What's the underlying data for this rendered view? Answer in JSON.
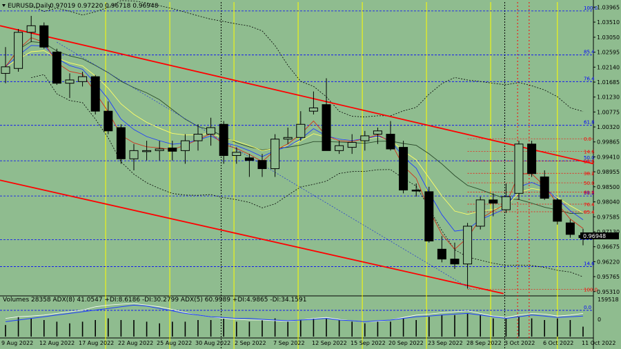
{
  "header": {
    "symbol": "EURUSD,Daily",
    "ohlc": "0.97019 0.97220 0.96718 0.96948"
  },
  "price_badge": "0.96948",
  "volume_header": "Volumes 28358  ADX(8) 41.0547 +DI:8.6186 -DI:30.2799  ADX(5) 60.9989 +DI:4.9865 -DI:34.1591",
  "volume_scale": {
    "top": "159518",
    "bottom": "0"
  },
  "colors": {
    "background": "#8fbc8f",
    "red_channel": "#ff0000",
    "blue_fib": "#0000ff",
    "red_fib": "#ff0000",
    "yellow_vline": "#ffff00"
  },
  "chart_data": {
    "type": "candlestick",
    "symbol": "EURUSD",
    "timeframe": "Daily",
    "x_tick_labels": [
      "9 Aug 2022",
      "12 Aug 2022",
      "17 Aug 2022",
      "22 Aug 2022",
      "25 Aug 2022",
      "30 Aug 2022",
      "2 Sep 2022",
      "7 Sep 2022",
      "12 Sep 2022",
      "15 Sep 2022",
      "20 Sep 2022",
      "23 Sep 2022",
      "28 Sep 2022",
      "3 Oct 2022",
      "6 Oct 2022",
      "11 Oct 2022"
    ],
    "y_tick_labels": [
      "1.03965",
      "1.03510",
      "1.03050",
      "1.02595",
      "1.02140",
      "1.01685",
      "1.01230",
      "1.00775",
      "1.00320",
      "0.99865",
      "0.99410",
      "0.98955",
      "0.98500",
      "0.98040",
      "0.97585",
      "0.97130",
      "0.96675",
      "0.96220",
      "0.95765",
      "0.95310"
    ],
    "y_range": [
      0.952,
      1.0412
    ],
    "blue_fib_levels": [
      {
        "label": "100.0",
        "price": 1.0385
      },
      {
        "label": "85.4",
        "price": 1.0251
      },
      {
        "label": "76.4",
        "price": 1.017
      },
      {
        "label": "61.8",
        "price": 1.0037
      },
      {
        "label": "50.0",
        "price": 0.9929
      },
      {
        "label": "38.2",
        "price": 0.9822
      },
      {
        "label": "23.6",
        "price": 0.9689
      },
      {
        "label": "14.6",
        "price": 0.9607
      },
      {
        "label": "0.0",
        "price": 0.9474
      }
    ],
    "red_fib_levels": [
      {
        "label": "0.0",
        "price": 0.9996
      },
      {
        "label": "14.6",
        "price": 0.9958
      },
      {
        "label": "23.6",
        "price": 0.9928
      },
      {
        "label": "38.2",
        "price": 0.9891
      },
      {
        "label": "50.0",
        "price": 0.9862
      },
      {
        "label": "61.8",
        "price": 0.9834
      },
      {
        "label": "76.4",
        "price": 0.9797
      },
      {
        "label": "85.4",
        "price": 0.9774
      },
      {
        "label": "100.0",
        "price": 0.9538
      }
    ],
    "candles": [
      {
        "o": 1.0195,
        "h": 1.0275,
        "l": 1.0165,
        "c": 1.0215
      },
      {
        "o": 1.021,
        "h": 1.033,
        "l": 1.02,
        "c": 1.032
      },
      {
        "o": 1.032,
        "h": 1.037,
        "l": 1.029,
        "c": 1.034
      },
      {
        "o": 1.034,
        "h": 1.035,
        "l": 1.027,
        "c": 1.0275
      },
      {
        "o": 1.026,
        "h": 1.027,
        "l": 1.016,
        "c": 1.0165
      },
      {
        "o": 1.0165,
        "h": 1.0195,
        "l": 1.012,
        "c": 1.0175
      },
      {
        "o": 1.017,
        "h": 1.02,
        "l": 1.0155,
        "c": 1.0185
      },
      {
        "o": 1.0185,
        "h": 1.019,
        "l": 1.007,
        "c": 1.008
      },
      {
        "o": 1.008,
        "h": 1.011,
        "l": 1.001,
        "c": 1.002
      },
      {
        "o": 1.003,
        "h": 1.004,
        "l": 0.992,
        "c": 0.9935
      },
      {
        "o": 0.9935,
        "h": 0.998,
        "l": 0.99,
        "c": 0.996
      },
      {
        "o": 0.9958,
        "h": 0.999,
        "l": 0.993,
        "c": 0.996
      },
      {
        "o": 0.996,
        "h": 0.999,
        "l": 0.993,
        "c": 0.9965
      },
      {
        "o": 0.9968,
        "h": 0.999,
        "l": 0.993,
        "c": 0.9958
      },
      {
        "o": 0.996,
        "h": 1.001,
        "l": 0.992,
        "c": 0.999
      },
      {
        "o": 0.999,
        "h": 1.004,
        "l": 0.996,
        "c": 1.001
      },
      {
        "o": 1.001,
        "h": 1.006,
        "l": 0.9975,
        "c": 1.003
      },
      {
        "o": 1.004,
        "h": 1.005,
        "l": 0.992,
        "c": 0.9945
      },
      {
        "o": 0.9945,
        "h": 0.997,
        "l": 0.992,
        "c": 0.9955
      },
      {
        "o": 0.9938,
        "h": 0.995,
        "l": 0.988,
        "c": 0.993
      },
      {
        "o": 0.993,
        "h": 0.995,
        "l": 0.988,
        "c": 0.9905
      },
      {
        "o": 0.9905,
        "h": 1.001,
        "l": 0.988,
        "c": 0.9995
      },
      {
        "o": 0.9995,
        "h": 1.003,
        "l": 0.998,
        "c": 1.0
      },
      {
        "o": 1.0,
        "h": 1.008,
        "l": 0.999,
        "c": 1.004
      },
      {
        "o": 1.008,
        "h": 1.014,
        "l": 1.007,
        "c": 1.009
      },
      {
        "o": 1.01,
        "h": 1.018,
        "l": 0.996,
        "c": 0.996
      },
      {
        "o": 0.996,
        "h": 0.999,
        "l": 0.995,
        "c": 0.9975
      },
      {
        "o": 0.997,
        "h": 1.001,
        "l": 0.995,
        "c": 0.9985
      },
      {
        "o": 0.999,
        "h": 1.002,
        "l": 0.996,
        "c": 1.0005
      },
      {
        "o": 1.001,
        "h": 1.003,
        "l": 0.998,
        "c": 1.002
      },
      {
        "o": 1.001,
        "h": 1.005,
        "l": 0.996,
        "c": 0.9965
      },
      {
        "o": 0.997,
        "h": 0.999,
        "l": 0.983,
        "c": 0.984
      },
      {
        "o": 0.984,
        "h": 0.986,
        "l": 0.982,
        "c": 0.9838
      },
      {
        "o": 0.9835,
        "h": 0.985,
        "l": 0.968,
        "c": 0.9685
      },
      {
        "o": 0.966,
        "h": 0.97,
        "l": 0.962,
        "c": 0.963
      },
      {
        "o": 0.963,
        "h": 0.968,
        "l": 0.96,
        "c": 0.9615
      },
      {
        "o": 0.9615,
        "h": 0.974,
        "l": 0.954,
        "c": 0.973
      },
      {
        "o": 0.973,
        "h": 0.982,
        "l": 0.972,
        "c": 0.981
      },
      {
        "o": 0.981,
        "h": 0.983,
        "l": 0.976,
        "c": 0.98
      },
      {
        "o": 0.978,
        "h": 0.986,
        "l": 0.977,
        "c": 0.982
      },
      {
        "o": 0.983,
        "h": 0.999,
        "l": 0.981,
        "c": 0.998
      },
      {
        "o": 0.998,
        "h": 0.999,
        "l": 0.988,
        "c": 0.989
      },
      {
        "o": 0.988,
        "h": 0.99,
        "l": 0.981,
        "c": 0.9815
      },
      {
        "o": 0.981,
        "h": 0.9815,
        "l": 0.9735,
        "c": 0.9745
      },
      {
        "o": 0.974,
        "h": 0.975,
        "l": 0.9695,
        "c": 0.9705
      },
      {
        "o": 0.9702,
        "h": 0.9722,
        "l": 0.9672,
        "c": 0.9695
      }
    ],
    "volumes": [
      0.35,
      0.6,
      0.55,
      0.5,
      0.45,
      0.4,
      0.45,
      0.5,
      0.55,
      0.5,
      0.5,
      0.45,
      0.4,
      0.45,
      0.45,
      0.5,
      0.5,
      0.55,
      0.45,
      0.45,
      0.5,
      0.55,
      0.45,
      0.5,
      0.55,
      0.55,
      0.5,
      0.45,
      0.4,
      0.45,
      0.45,
      0.55,
      0.5,
      0.6,
      0.65,
      0.65,
      0.7,
      0.65,
      0.55,
      0.55,
      0.6,
      0.55,
      0.5,
      0.55,
      0.5,
      0.3
    ],
    "adx_line": [
      0.45,
      0.5,
      0.55,
      0.6,
      0.65,
      0.7,
      0.75,
      0.8,
      0.85,
      0.9,
      0.95,
      0.92,
      0.85,
      0.78,
      0.7,
      0.65,
      0.6,
      0.58,
      0.55,
      0.55,
      0.52,
      0.5,
      0.48,
      0.5,
      0.52,
      0.55,
      0.5,
      0.48,
      0.45,
      0.48,
      0.5,
      0.55,
      0.6,
      0.62,
      0.65,
      0.68,
      0.7,
      0.65,
      0.6,
      0.55,
      0.6,
      0.65,
      0.62,
      0.58,
      0.6,
      0.62
    ],
    "adx_line2": [
      0.55,
      0.6,
      0.62,
      0.65,
      0.7,
      0.75,
      0.8,
      0.9,
      0.95,
      0.98,
      1.0,
      0.95,
      0.9,
      0.82,
      0.72,
      0.65,
      0.6,
      0.55,
      0.52,
      0.5,
      0.5,
      0.48,
      0.46,
      0.5,
      0.55,
      0.58,
      0.52,
      0.48,
      0.45,
      0.46,
      0.5,
      0.58,
      0.65,
      0.68,
      0.72,
      0.75,
      0.78,
      0.7,
      0.62,
      0.58,
      0.65,
      0.7,
      0.68,
      0.62,
      0.65,
      0.7
    ]
  }
}
